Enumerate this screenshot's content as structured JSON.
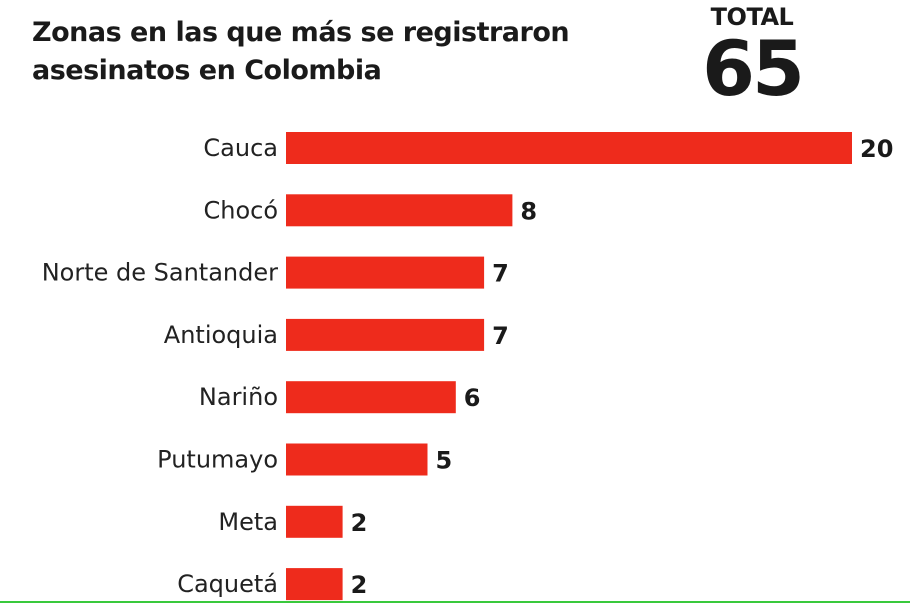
{
  "title": "Zonas en las que más se registraron asesinatos en Colombia",
  "total": {
    "label": "TOTAL",
    "value": "65"
  },
  "colors": {
    "bar": "#ee2b1c",
    "text": "#1a1a1a"
  },
  "chart_data": {
    "type": "bar",
    "orientation": "horizontal",
    "title": "Zonas en las que más se registraron asesinatos en Colombia",
    "categories": [
      "Cauca",
      "Chocó",
      "Norte de Santander",
      "Antioquia",
      "Nariño",
      "Putumayo",
      "Meta",
      "Caquetá"
    ],
    "values": [
      20,
      8,
      7,
      7,
      6,
      5,
      2,
      2
    ],
    "data_labels": [
      "20",
      "8",
      "7",
      "7",
      "6",
      "5",
      "2",
      "2"
    ],
    "grid": false,
    "legend": "none"
  }
}
